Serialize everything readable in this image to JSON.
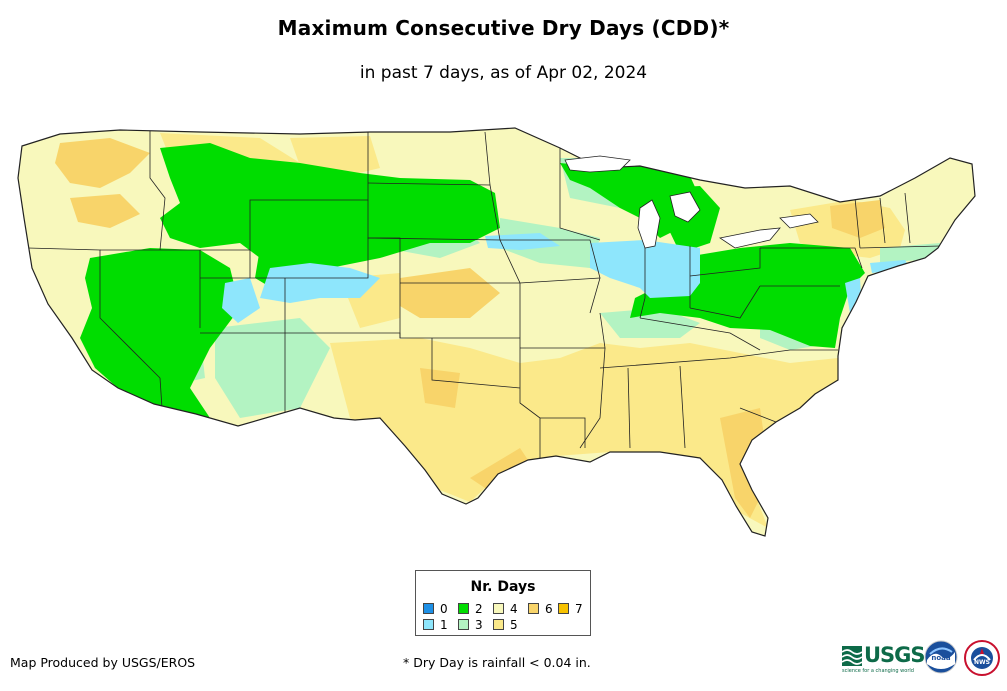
{
  "title": "Maximum Consecutive Dry Days (CDD)*",
  "subtitle": "in past 7 days, as of Apr 02, 2024",
  "legend": {
    "title": "Nr. Days",
    "items": [
      {
        "label": "0",
        "color": "#1e90e6"
      },
      {
        "label": "1",
        "color": "#8ee6fc"
      },
      {
        "label": "2",
        "color": "#00dd00"
      },
      {
        "label": "3",
        "color": "#b3f3c2"
      },
      {
        "label": "4",
        "color": "#f8f8bc"
      },
      {
        "label": "5",
        "color": "#fbe98a"
      },
      {
        "label": "6",
        "color": "#f8d46a"
      },
      {
        "label": "7",
        "color": "#f7c200"
      }
    ]
  },
  "footer": {
    "producer": "Map Produced by USGS/EROS",
    "note": "* Dry Day is rainfall < 0.04 in."
  },
  "logos": {
    "usgs": "USGS",
    "usgs_tagline": "science for a changing world",
    "noaa": "noaa",
    "nws": "NWS"
  },
  "colors": {
    "state_border": "#222222",
    "ocean": "#ffffff"
  }
}
